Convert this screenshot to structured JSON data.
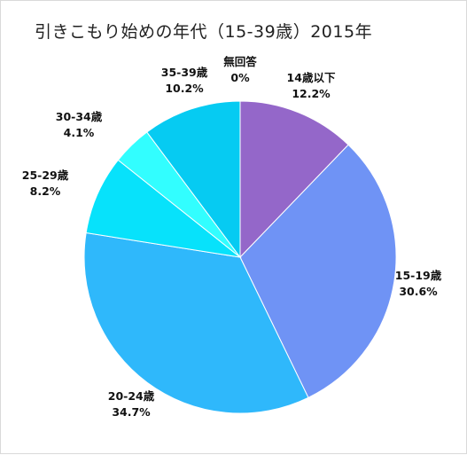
{
  "chart_data": {
    "type": "pie",
    "title": "引きこもり始めの年代（15-39歳）2015年",
    "slices": [
      {
        "label": "14歳以下",
        "value": 12.2,
        "display": "12.2%",
        "color": "#9467c9"
      },
      {
        "label": "15-19歳",
        "value": 30.6,
        "display": "30.6%",
        "color": "#6f93f5"
      },
      {
        "label": "20-24歳",
        "value": 34.7,
        "display": "34.7%",
        "color": "#2fb8fb"
      },
      {
        "label": "25-29歳",
        "value": 8.2,
        "display": "8.2%",
        "color": "#07e2fb"
      },
      {
        "label": "30-34歳",
        "value": 4.1,
        "display": "4.1%",
        "color": "#32feff"
      },
      {
        "label": "35-39歳",
        "value": 10.2,
        "display": "10.2%",
        "color": "#06cbf2"
      },
      {
        "label": "無回答",
        "value": 0,
        "display": "0%",
        "color": "#35cfe0"
      }
    ],
    "start_angle": "12 o'clock",
    "direction": "clockwise",
    "legend": "none"
  }
}
